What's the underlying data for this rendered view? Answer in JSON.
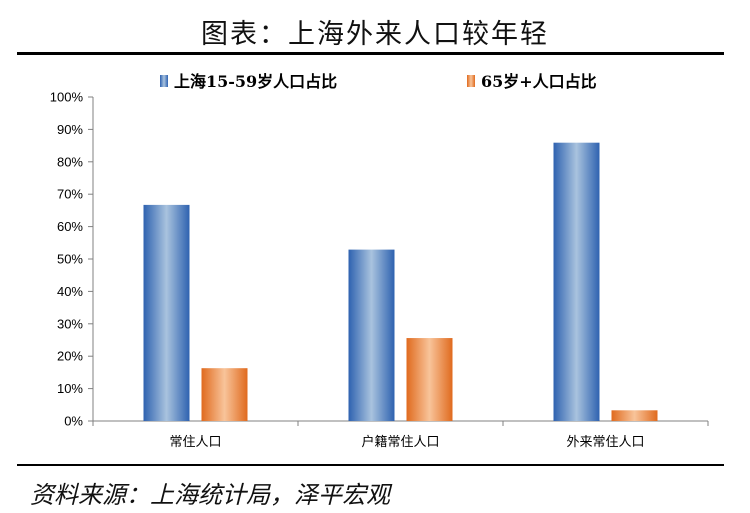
{
  "page": {
    "title": "图表：上海外来人口较年轻",
    "source": "资料来源：上海统计局，泽平宏观"
  },
  "colors": {
    "series_blue": "#4a7fc1",
    "series_orange": "#e8823a"
  },
  "chart_data": {
    "type": "bar",
    "categories": [
      "常住人口",
      "户籍常住人口",
      "外来常住人口"
    ],
    "series": [
      {
        "name": "上海15-59岁人口占比",
        "values": [
          66.7,
          52.9,
          85.9
        ]
      },
      {
        "name": "65岁+人口占比",
        "values": [
          16.3,
          25.6,
          3.3
        ]
      }
    ],
    "ylim": [
      0,
      100
    ],
    "yticks": [
      "0%",
      "10%",
      "20%",
      "30%",
      "40%",
      "50%",
      "60%",
      "70%",
      "80%",
      "90%",
      "100%"
    ],
    "legend_position": "top",
    "grid": false
  }
}
